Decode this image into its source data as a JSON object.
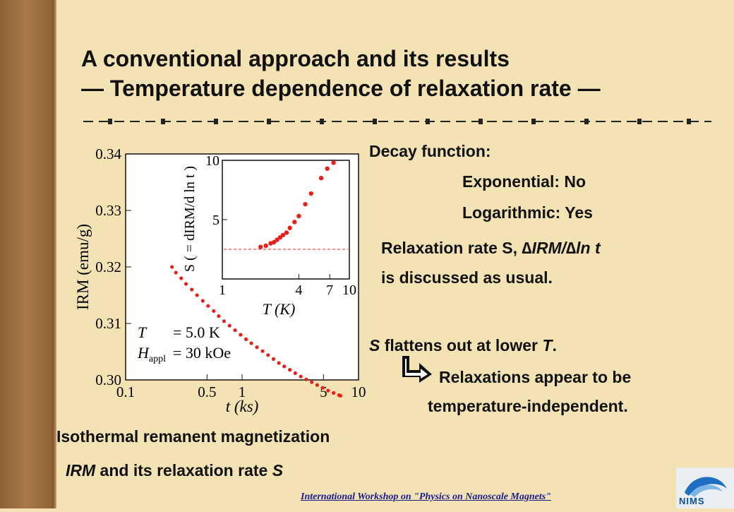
{
  "slide": {
    "title_line1": "A conventional approach and its results",
    "title_line2": "— Temperature dependence of relaxation rate —",
    "decay_heading": "Decay function:",
    "exponential": "Exponential: No",
    "logarithmic": "Logarithmic: Yes",
    "relaxation_rate_prefix": "Relaxation rate S, ",
    "relaxation_rate_formula": "∆IRM/∆ln t",
    "discussed": "is discussed as usual.",
    "flatten_s": "S",
    "flatten_mid": " flattens out at lower ",
    "flatten_t": "T",
    "flatten_end": ".",
    "conclusion_line1": "Relaxations appear to be",
    "conclusion_line2": "temperature-independent.",
    "caption_line1": "Isothermal remanent magnetization",
    "caption_irm": "IRM",
    "caption_mid": " and its relaxation rate ",
    "caption_s": "S",
    "footer": "International Workshop on \"Physics on Nanoscale Magnets\"",
    "logo": "NIMS"
  },
  "colors": {
    "background": "#f2e2b4",
    "sidebar": "#9a6c3c",
    "data": "#e8201c",
    "footer": "#1b1b8f"
  },
  "chart_data": [
    {
      "type": "scatter",
      "xscale": "log",
      "xlabel": "t (ks)",
      "ylabel": "IRM (emu/g)",
      "xlim": [
        0.1,
        10
      ],
      "ylim": [
        0.3,
        0.34
      ],
      "xticks": [
        "0.1",
        "0.5",
        "1",
        "5",
        "10"
      ],
      "yticks": [
        "0.30",
        "0.31",
        "0.32",
        "0.33",
        "0.34"
      ],
      "annotation_line1": [
        "T",
        "= 5.0 K"
      ],
      "annotation_line2": [
        "H",
        "appl",
        "= 30 kOe"
      ],
      "x": [
        0.25,
        0.27,
        0.3,
        0.33,
        0.37,
        0.41,
        0.46,
        0.51,
        0.57,
        0.63,
        0.7,
        0.78,
        0.87,
        0.97,
        1.08,
        1.2,
        1.34,
        1.5,
        1.67,
        1.86,
        2.07,
        2.3,
        2.57,
        2.86,
        3.19,
        3.55,
        3.96,
        4.41,
        4.91,
        5.47,
        6.1,
        6.8,
        7.0
      ],
      "y": [
        0.32,
        0.319,
        0.318,
        0.317,
        0.316,
        0.315,
        0.314,
        0.3131,
        0.3122,
        0.3113,
        0.3104,
        0.3096,
        0.3088,
        0.308,
        0.3072,
        0.3065,
        0.3058,
        0.3051,
        0.3044,
        0.3037,
        0.303,
        0.3024,
        0.3018,
        0.3012,
        0.3006,
        0.3001,
        0.2996,
        0.2991,
        0.2986,
        0.2981,
        0.2977,
        0.2973,
        0.2972
      ]
    },
    {
      "type": "scatter",
      "xscale": "log",
      "xlabel": "T (K)",
      "ylabel": "S ( = dIRM/d ln t )",
      "xlim": [
        1,
        10
      ],
      "ylim": [
        0,
        10
      ],
      "xticks": [
        "1",
        "4",
        "7",
        "10"
      ],
      "yticks": [
        "5",
        "10"
      ],
      "reference_line": 2.5,
      "x": [
        2.0,
        2.2,
        2.4,
        2.55,
        2.7,
        2.85,
        3.0,
        3.2,
        3.4,
        3.7,
        4.0,
        4.5,
        5.0,
        6.0,
        6.7,
        7.5
      ],
      "y": [
        2.7,
        2.8,
        3.0,
        3.1,
        3.3,
        3.5,
        3.7,
        3.9,
        4.3,
        4.8,
        5.3,
        6.3,
        7.2,
        8.5,
        9.3,
        9.8
      ]
    }
  ]
}
